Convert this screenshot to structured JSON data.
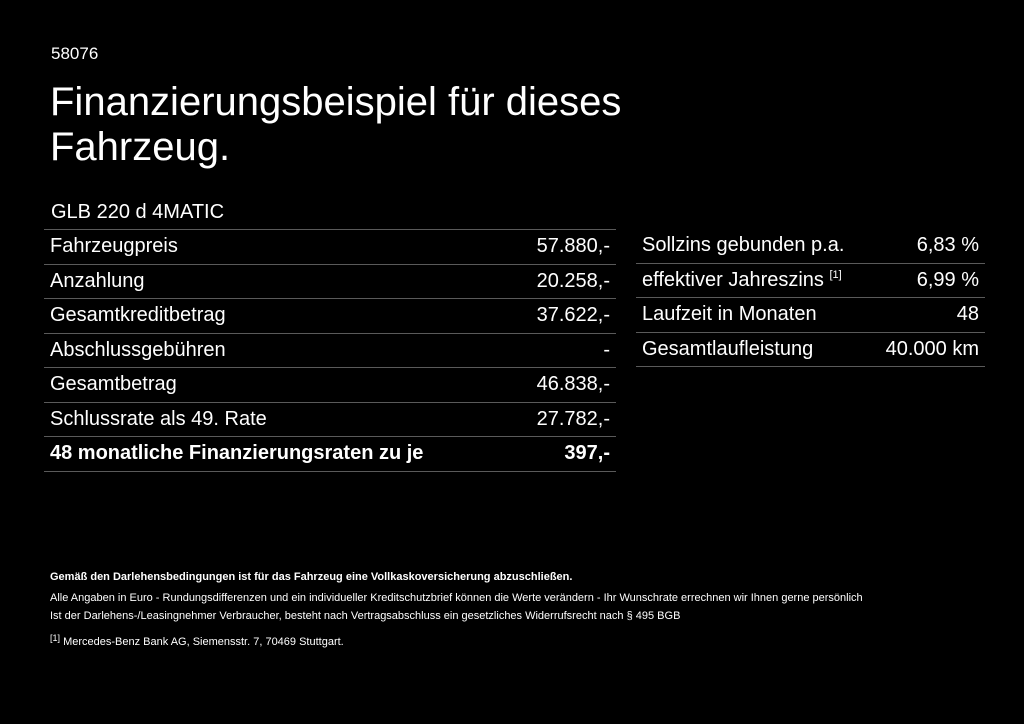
{
  "code": "58076",
  "title": "Finanzierungsbeispiel für dieses Fahrzeug.",
  "model": "GLB 220 d 4MATIC",
  "left_table": [
    {
      "label": "Fahrzeugpreis",
      "value": "57.880,-"
    },
    {
      "label": "Anzahlung",
      "value": "20.258,-"
    },
    {
      "label": "Gesamtkreditbetrag",
      "value": "37.622,-"
    },
    {
      "label": "Abschlussgebühren",
      "value": "-"
    },
    {
      "label": "Gesamtbetrag",
      "value": "46.838,-"
    },
    {
      "label": "Schlussrate als 49. Rate",
      "value": "27.782,-"
    },
    {
      "label": "48 monatliche Finanzierungsraten zu je",
      "value": "397,-"
    }
  ],
  "right_table": [
    {
      "label": "Sollzins gebunden p.a.",
      "value": "6,83 %"
    },
    {
      "label": "effektiver Jahreszins",
      "sup": "[1]",
      "value": "6,99 %"
    },
    {
      "label": "Laufzeit in Monaten",
      "value": "48"
    },
    {
      "label": "Gesamtlaufleistung",
      "value": "40.000 km"
    }
  ],
  "footer": {
    "bold": "Gemäß den Darlehensbedingungen ist für das Fahrzeug eine Vollkaskoversicherung abzuschließen.",
    "line1": "Alle Angaben in Euro - Rundungsdifferenzen und ein individueller Kreditschutzbrief können die Werte verändern - Ihr Wunschrate errechnen wir Ihnen gerne persönlich",
    "line2": "Ist der Darlehens-/Leasingnehmer Verbraucher, besteht nach Vertragsabschluss ein gesetzliches Widerrufsrecht nach § 495 BGB",
    "note_mark": "[1]",
    "note": "Mercedes-Benz Bank AG, Siemensstr. 7, 70469 Stuttgart."
  }
}
